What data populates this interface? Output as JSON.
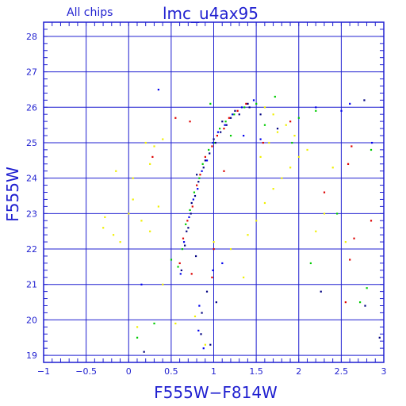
{
  "chart_data": {
    "type": "scatter",
    "title": "lmc_u4ax95",
    "subtitle": "All chips",
    "xlabel": "F555W−F814W",
    "ylabel": "F555W",
    "xlim": [
      -1,
      3
    ],
    "ylim": [
      28.4,
      18.8
    ],
    "y_inverted": true,
    "grid": true,
    "x_ticks": [
      -1,
      -0.5,
      0,
      0.5,
      1,
      1.5,
      2,
      2.5,
      3
    ],
    "x_tick_labels": [
      "−1",
      "−0.5",
      "0",
      "0.5",
      "1",
      "1.5",
      "2",
      "2.5",
      "3"
    ],
    "y_ticks": [
      19,
      20,
      21,
      22,
      23,
      24,
      25,
      26,
      27,
      28
    ],
    "y_tick_labels": [
      "19",
      "20",
      "21",
      "22",
      "23",
      "24",
      "25",
      "26",
      "27",
      "28"
    ],
    "colors": {
      "axis": "#1f1fd0",
      "grid": "#1f1fd0",
      "text": "#1f1fd0"
    },
    "series": [
      {
        "color": "#000080",
        "points": [
          [
            0.62,
            21.4
          ],
          [
            0.66,
            22.1
          ],
          [
            0.7,
            22.6
          ],
          [
            0.73,
            23.0
          ],
          [
            0.78,
            23.5
          ],
          [
            0.82,
            23.9
          ],
          [
            0.88,
            24.3
          ],
          [
            0.95,
            24.7
          ],
          [
            1.02,
            25.0
          ],
          [
            1.08,
            25.3
          ],
          [
            1.15,
            25.5
          ],
          [
            1.2,
            25.7
          ],
          [
            1.3,
            25.8
          ],
          [
            1.42,
            26.0
          ],
          [
            0.92,
            20.8
          ],
          [
            1.03,
            20.5
          ],
          [
            0.86,
            20.2
          ],
          [
            0.96,
            19.3
          ],
          [
            0.85,
            19.6
          ],
          [
            0.79,
            21.8
          ],
          [
            0.68,
            22.5
          ],
          [
            0.74,
            23.3
          ],
          [
            0.8,
            24.1
          ],
          [
            0.9,
            24.5
          ],
          [
            1.0,
            25.1
          ],
          [
            1.1,
            25.6
          ],
          [
            1.25,
            25.9
          ],
          [
            1.4,
            26.1
          ],
          [
            1.55,
            25.8
          ],
          [
            2.26,
            20.8
          ],
          [
            2.78,
            20.4
          ],
          [
            2.77,
            26.2
          ],
          [
            1.75,
            25.4
          ],
          [
            0.18,
            19.1
          ],
          [
            2.95,
            19.5
          ]
        ]
      },
      {
        "color": "#dd0000",
        "points": [
          [
            0.6,
            21.6
          ],
          [
            0.64,
            22.3
          ],
          [
            0.69,
            22.8
          ],
          [
            0.75,
            23.2
          ],
          [
            0.8,
            23.8
          ],
          [
            0.84,
            24.1
          ],
          [
            0.9,
            24.6
          ],
          [
            0.98,
            24.9
          ],
          [
            1.04,
            25.2
          ],
          [
            1.12,
            25.4
          ],
          [
            1.18,
            25.7
          ],
          [
            1.28,
            25.9
          ],
          [
            1.38,
            26.1
          ],
          [
            0.98,
            21.2
          ],
          [
            1.0,
            22.0
          ],
          [
            0.74,
            21.3
          ],
          [
            2.55,
            20.5
          ],
          [
            2.6,
            21.7
          ],
          [
            2.65,
            22.3
          ],
          [
            2.58,
            24.4
          ],
          [
            2.85,
            22.8
          ],
          [
            1.58,
            25.0
          ],
          [
            2.3,
            23.6
          ],
          [
            2.62,
            24.9
          ],
          [
            1.9,
            25.6
          ],
          [
            0.55,
            25.7
          ],
          [
            0.28,
            24.6
          ],
          [
            1.12,
            24.2
          ],
          [
            0.72,
            25.6
          ]
        ]
      },
      {
        "color": "#00cc00",
        "points": [
          [
            0.58,
            21.5
          ],
          [
            0.63,
            22.0
          ],
          [
            0.67,
            22.7
          ],
          [
            0.72,
            23.1
          ],
          [
            0.77,
            23.6
          ],
          [
            0.83,
            24.0
          ],
          [
            0.87,
            24.4
          ],
          [
            0.94,
            24.8
          ],
          [
            1.0,
            25.0
          ],
          [
            1.07,
            25.4
          ],
          [
            1.14,
            25.6
          ],
          [
            1.24,
            25.8
          ],
          [
            1.36,
            26.0
          ],
          [
            1.5,
            26.1
          ],
          [
            0.1,
            19.5
          ],
          [
            0.3,
            19.9
          ],
          [
            0.5,
            21.7
          ],
          [
            1.2,
            25.2
          ],
          [
            1.6,
            25.5
          ],
          [
            1.92,
            25.0
          ],
          [
            2.14,
            21.6
          ],
          [
            2.0,
            25.7
          ],
          [
            2.2,
            25.9
          ],
          [
            2.72,
            20.5
          ],
          [
            2.8,
            20.9
          ],
          [
            2.85,
            24.8
          ],
          [
            2.45,
            23.0
          ],
          [
            1.72,
            26.3
          ],
          [
            0.96,
            26.1
          ]
        ]
      },
      {
        "color": "#0000ee",
        "points": [
          [
            0.61,
            21.3
          ],
          [
            0.65,
            22.2
          ],
          [
            0.71,
            22.9
          ],
          [
            0.76,
            23.4
          ],
          [
            0.81,
            23.7
          ],
          [
            0.86,
            24.2
          ],
          [
            0.92,
            24.5
          ],
          [
            0.99,
            25.0
          ],
          [
            1.05,
            25.3
          ],
          [
            1.13,
            25.5
          ],
          [
            1.22,
            25.8
          ],
          [
            1.33,
            26.0
          ],
          [
            1.47,
            26.2
          ],
          [
            0.83,
            20.4
          ],
          [
            0.99,
            21.4
          ],
          [
            0.82,
            19.7
          ],
          [
            1.1,
            21.6
          ],
          [
            1.55,
            25.1
          ],
          [
            2.2,
            26.0
          ],
          [
            2.5,
            25.9
          ],
          [
            2.6,
            26.1
          ],
          [
            0.15,
            21.0
          ],
          [
            0.88,
            19.2
          ],
          [
            2.86,
            25.0
          ],
          [
            1.35,
            25.2
          ],
          [
            0.35,
            26.5
          ]
        ]
      },
      {
        "color": "#f0f000",
        "points": [
          [
            -0.3,
            22.6
          ],
          [
            -0.28,
            22.9
          ],
          [
            -0.18,
            22.4
          ],
          [
            -0.1,
            22.2
          ],
          [
            0.0,
            23.0
          ],
          [
            0.05,
            23.4
          ],
          [
            0.15,
            22.8
          ],
          [
            0.25,
            22.5
          ],
          [
            0.35,
            23.2
          ],
          [
            0.25,
            24.4
          ],
          [
            0.3,
            24.9
          ],
          [
            0.4,
            25.1
          ],
          [
            0.2,
            25.0
          ],
          [
            1.4,
            22.4
          ],
          [
            1.5,
            22.8
          ],
          [
            1.6,
            23.3
          ],
          [
            1.7,
            23.7
          ],
          [
            1.8,
            24.0
          ],
          [
            1.9,
            24.3
          ],
          [
            2.0,
            24.6
          ],
          [
            2.1,
            24.8
          ],
          [
            1.55,
            24.6
          ],
          [
            1.65,
            25.0
          ],
          [
            1.75,
            25.3
          ],
          [
            1.85,
            25.5
          ],
          [
            2.4,
            24.3
          ],
          [
            2.55,
            22.2
          ],
          [
            2.3,
            23.0
          ],
          [
            1.2,
            22.0
          ],
          [
            1.0,
            22.2
          ],
          [
            0.4,
            21.0
          ],
          [
            0.9,
            19.3
          ],
          [
            0.78,
            20.1
          ],
          [
            0.1,
            19.8
          ],
          [
            0.55,
            19.9
          ],
          [
            1.6,
            26.0
          ],
          [
            1.7,
            25.8
          ],
          [
            1.95,
            25.2
          ],
          [
            2.2,
            22.5
          ],
          [
            1.35,
            21.2
          ],
          [
            0.05,
            24.0
          ],
          [
            -0.15,
            24.2
          ]
        ]
      }
    ]
  }
}
